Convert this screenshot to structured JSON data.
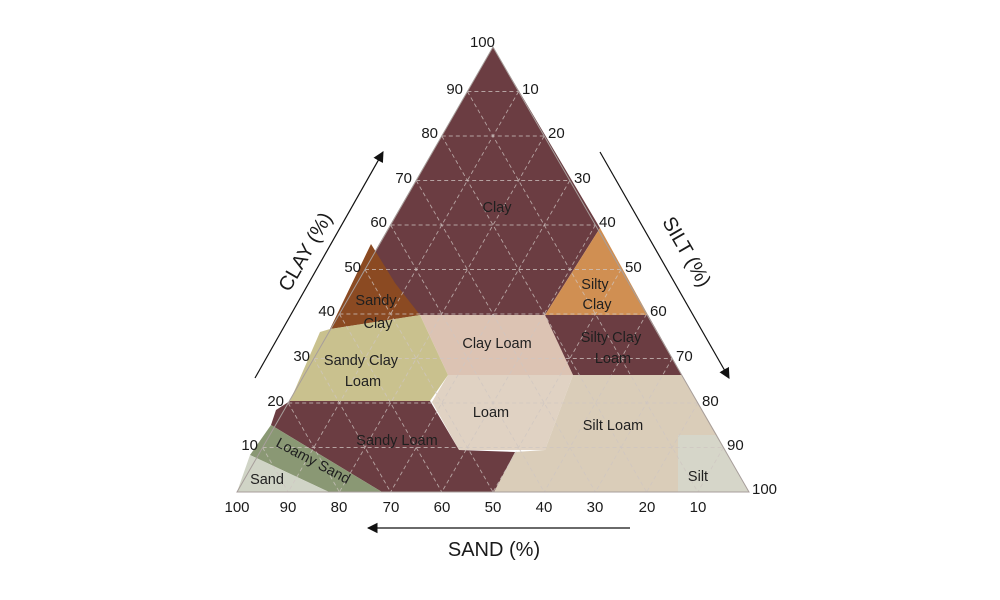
{
  "diagram": {
    "axes": {
      "clay": {
        "title": "CLAY (%)",
        "ticks": [
          "10",
          "20",
          "30",
          "40",
          "50",
          "60",
          "70",
          "80",
          "90",
          "100"
        ]
      },
      "silt": {
        "title": "SILT (%)",
        "ticks": [
          "10",
          "20",
          "30",
          "40",
          "50",
          "60",
          "70",
          "80",
          "90",
          "100"
        ]
      },
      "sand": {
        "title": "SAND (%)",
        "ticks": [
          "100",
          "90",
          "80",
          "70",
          "60",
          "50",
          "40",
          "30",
          "20",
          "10"
        ]
      }
    },
    "regions": {
      "clay": {
        "lines": [
          "Clay"
        ],
        "color": "#6b3d42"
      },
      "silty_clay": {
        "lines": [
          "Silty",
          "Clay"
        ],
        "color": "#d08f52"
      },
      "sandy_clay": {
        "lines": [
          "Sandy",
          "Clay"
        ],
        "color": "#8b4a22"
      },
      "clay_loam": {
        "lines": [
          "Clay Loam"
        ],
        "color": "#dcc3b3"
      },
      "silty_clay_loam": {
        "lines": [
          "Silty Clay",
          "Loam"
        ],
        "color": "#6b3d42"
      },
      "sandy_clay_loam": {
        "lines": [
          "Sandy Clay",
          "Loam"
        ],
        "color": "#c9c18e"
      },
      "loam": {
        "lines": [
          "Loam"
        ],
        "color": "#e0d2c3"
      },
      "silt_loam": {
        "lines": [
          "Silt Loam"
        ],
        "color": "#dacdb9"
      },
      "sandy_loam": {
        "lines": [
          "Sandy Loam"
        ],
        "color": "#6b3d42"
      },
      "loamy_sand": {
        "lines": [
          "Loamy Sand"
        ],
        "color": "#8a9874"
      },
      "sand": {
        "lines": [
          "Sand"
        ],
        "color": "#d0d4c6"
      },
      "silt": {
        "lines": [
          "Silt"
        ],
        "color": "#d6d6c9"
      }
    }
  }
}
